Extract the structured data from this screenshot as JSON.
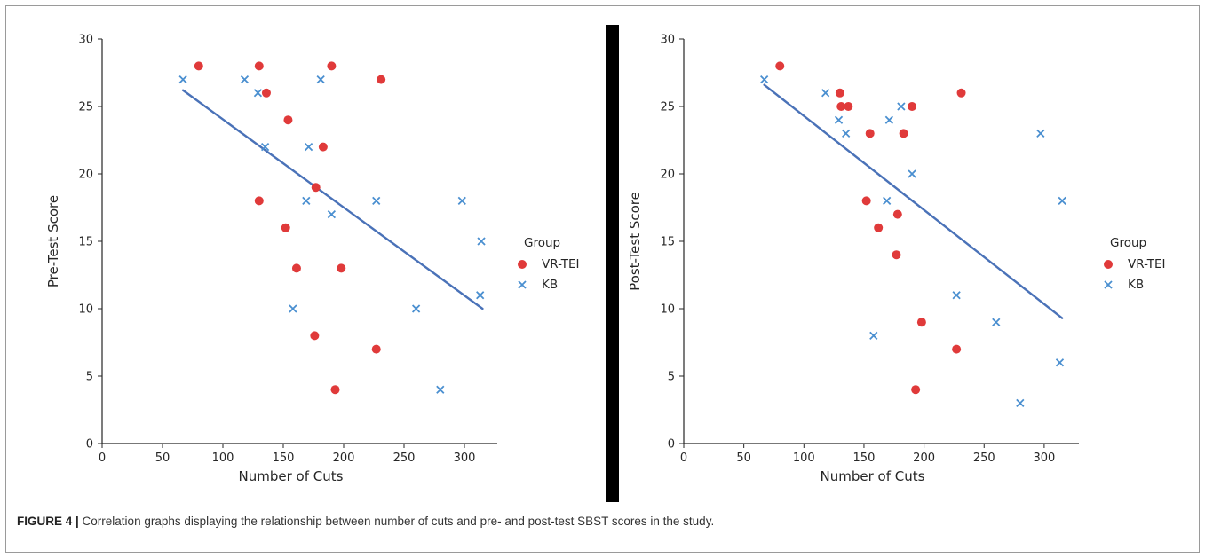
{
  "caption": {
    "label": "FIGURE 4 |",
    "text": " Correlation graphs displaying the relationship between number of cuts and pre- and post-test SBST scores in the study."
  },
  "legend": {
    "title": "Group",
    "entries": [
      {
        "label": "VR-TEI",
        "color": "#e03a3a",
        "marker": "circle"
      },
      {
        "label": "KB",
        "color": "#4a8fd0",
        "marker": "x"
      }
    ]
  },
  "chart_data": [
    {
      "type": "scatter",
      "xlabel": "Number of Cuts",
      "ylabel": "Pre-Test Score",
      "xlim": [
        0,
        330
      ],
      "ylim": [
        0,
        30
      ],
      "xticks": [
        0,
        50,
        100,
        150,
        200,
        250,
        300
      ],
      "yticks": [
        0,
        5,
        10,
        15,
        20,
        25,
        30
      ],
      "grid": false,
      "legend_position": "right",
      "series": [
        {
          "name": "VR-TEI",
          "color": "#e03a3a",
          "marker": "circle",
          "points": [
            [
              80,
              28
            ],
            [
              130,
              28
            ],
            [
              190,
              28
            ],
            [
              231,
              27
            ],
            [
              136,
              26
            ],
            [
              154,
              24
            ],
            [
              183,
              22
            ],
            [
              177,
              19
            ],
            [
              130,
              18
            ],
            [
              152,
              16
            ],
            [
              161,
              13
            ],
            [
              198,
              13
            ],
            [
              176,
              8
            ],
            [
              227,
              7
            ],
            [
              193,
              4
            ]
          ]
        },
        {
          "name": "KB",
          "color": "#4a8fd0",
          "marker": "x",
          "points": [
            [
              67,
              27
            ],
            [
              118,
              27
            ],
            [
              129,
              26
            ],
            [
              181,
              27
            ],
            [
              135,
              22
            ],
            [
              171,
              22
            ],
            [
              169,
              18
            ],
            [
              227,
              18
            ],
            [
              190,
              17
            ],
            [
              298,
              18
            ],
            [
              314,
              15
            ],
            [
              313,
              11
            ],
            [
              158,
              10
            ],
            [
              260,
              10
            ],
            [
              280,
              4
            ]
          ]
        }
      ],
      "regression_line": {
        "color": "#4a72b8",
        "from": [
          67,
          26.2
        ],
        "to": [
          315,
          10
        ]
      }
    },
    {
      "type": "scatter",
      "xlabel": "Number of Cuts",
      "ylabel": "Post-Test Score",
      "xlim": [
        0,
        330
      ],
      "ylim": [
        0,
        30
      ],
      "xticks": [
        0,
        50,
        100,
        150,
        200,
        250,
        300
      ],
      "yticks": [
        0,
        5,
        10,
        15,
        20,
        25,
        30
      ],
      "grid": false,
      "legend_position": "right",
      "series": [
        {
          "name": "VR-TEI",
          "color": "#e03a3a",
          "marker": "circle",
          "points": [
            [
              80,
              28
            ],
            [
              130,
              26
            ],
            [
              131,
              25
            ],
            [
              137,
              25
            ],
            [
              190,
              25
            ],
            [
              231,
              26
            ],
            [
              155,
              23
            ],
            [
              183,
              23
            ],
            [
              152,
              18
            ],
            [
              178,
              17
            ],
            [
              162,
              16
            ],
            [
              177,
              14
            ],
            [
              198,
              9
            ],
            [
              227,
              7
            ],
            [
              193,
              4
            ]
          ]
        },
        {
          "name": "KB",
          "color": "#4a8fd0",
          "marker": "x",
          "points": [
            [
              67,
              27
            ],
            [
              118,
              26
            ],
            [
              129,
              24
            ],
            [
              135,
              23
            ],
            [
              171,
              24
            ],
            [
              181,
              25
            ],
            [
              190,
              20
            ],
            [
              169,
              18
            ],
            [
              297,
              23
            ],
            [
              315,
              18
            ],
            [
              227,
              11
            ],
            [
              158,
              8
            ],
            [
              260,
              9
            ],
            [
              313,
              6
            ],
            [
              280,
              3
            ]
          ]
        }
      ],
      "regression_line": {
        "color": "#4a72b8",
        "from": [
          67,
          26.6
        ],
        "to": [
          315,
          9.3
        ]
      }
    }
  ]
}
